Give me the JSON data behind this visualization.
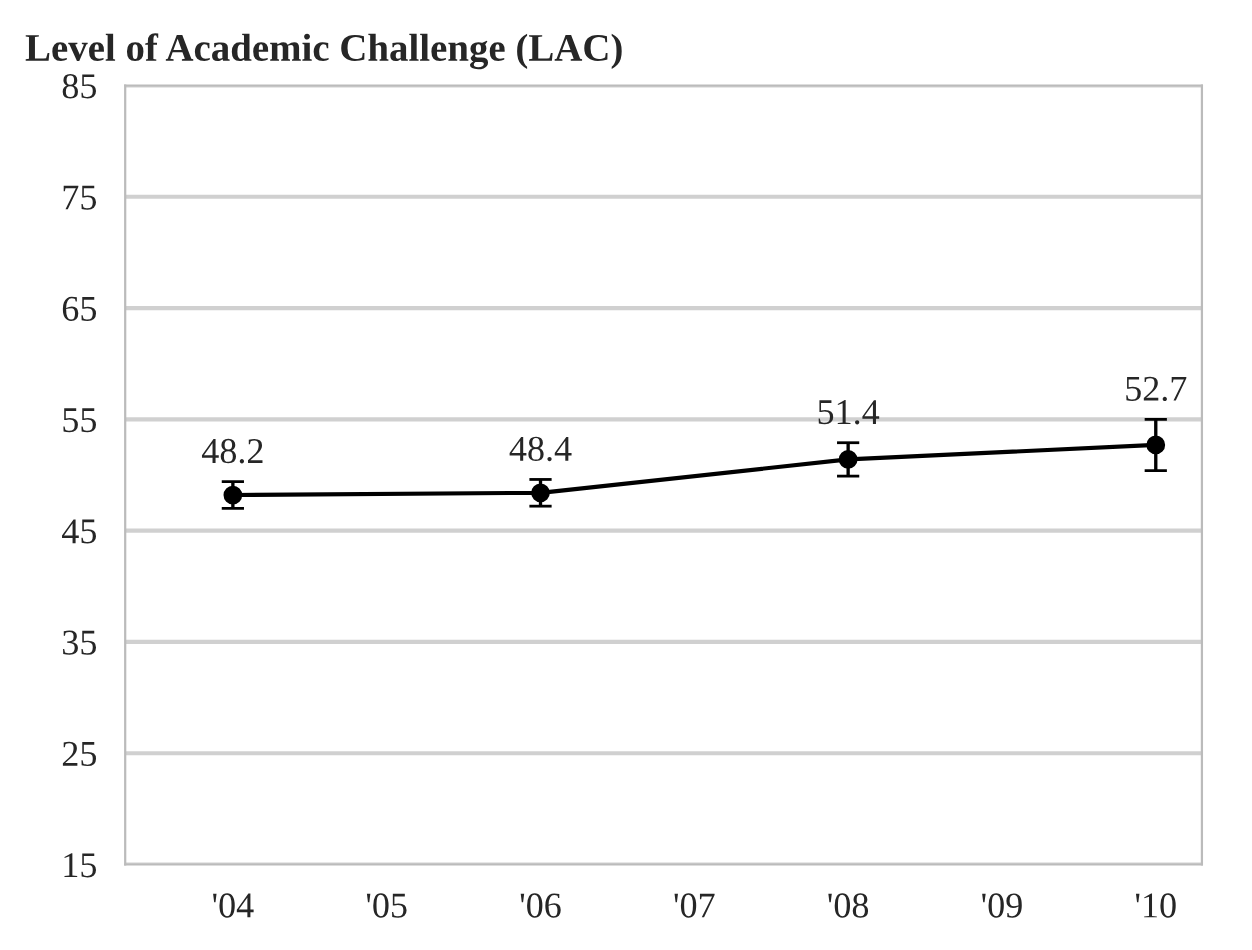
{
  "chart_data": {
    "type": "line",
    "title": "Level of Academic Challenge (LAC)",
    "x": [
      2004,
      2006,
      2008,
      2010
    ],
    "series": [
      {
        "color": "#000000",
        "values": [
          48.2,
          48.4,
          51.4,
          52.7
        ],
        "errors": [
          1.2,
          1.2,
          1.5,
          2.3
        ]
      }
    ],
    "xlim": [
      2003.3,
      2010.3
    ],
    "xticks": [
      {
        "value": 2004,
        "label": "'04"
      },
      {
        "value": 2005,
        "label": "'05"
      },
      {
        "value": 2006,
        "label": "'06"
      },
      {
        "value": 2007,
        "label": "'07"
      },
      {
        "value": 2008,
        "label": "'08"
      },
      {
        "value": 2009,
        "label": "'09"
      },
      {
        "value": 2010,
        "label": "'10"
      }
    ],
    "ylim": [
      15,
      85
    ],
    "yticks": [
      15,
      25,
      35,
      45,
      55,
      65,
      75,
      85
    ],
    "grid": "y",
    "marker": "circle",
    "line_style": "solid",
    "data_labels": true,
    "legend": false
  }
}
